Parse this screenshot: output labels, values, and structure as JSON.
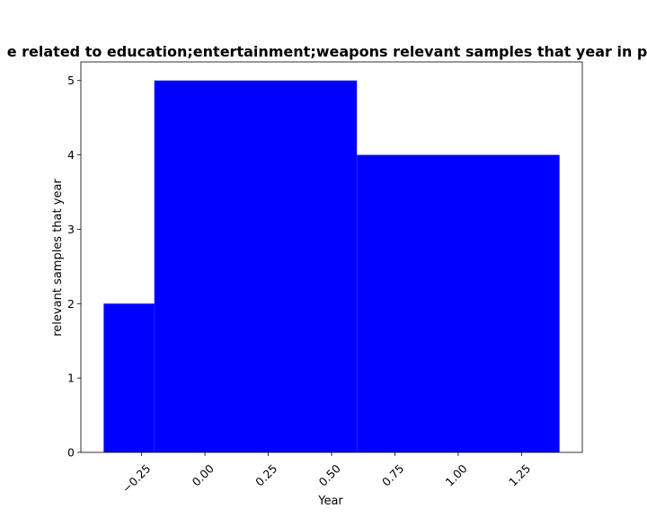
{
  "chart_data": {
    "type": "bar",
    "title": "e related to education;entertainment;weapons relevant samples that year in pr",
    "xlabel": "Year",
    "ylabel": "relevant samples that year",
    "bar_color": "#0000ff",
    "bars": [
      {
        "x_start": -0.4,
        "x_end": -0.2,
        "value": 2
      },
      {
        "x_start": -0.2,
        "x_end": 0.6,
        "value": 5
      },
      {
        "x_start": 0.6,
        "x_end": 1.4,
        "value": 4
      }
    ],
    "xlim": [
      -0.49,
      1.49
    ],
    "ylim": [
      0,
      5.25
    ],
    "x_ticks": [
      {
        "value": -0.25,
        "label": "−0.25"
      },
      {
        "value": 0.0,
        "label": "0.00"
      },
      {
        "value": 0.25,
        "label": "0.25"
      },
      {
        "value": 0.5,
        "label": "0.50"
      },
      {
        "value": 0.75,
        "label": "0.75"
      },
      {
        "value": 1.0,
        "label": "1.00"
      },
      {
        "value": 1.25,
        "label": "1.25"
      }
    ],
    "y_ticks": [
      {
        "value": 0,
        "label": "0"
      },
      {
        "value": 1,
        "label": "1"
      },
      {
        "value": 2,
        "label": "2"
      },
      {
        "value": 3,
        "label": "3"
      },
      {
        "value": 4,
        "label": "4"
      },
      {
        "value": 5,
        "label": "5"
      }
    ],
    "grid": false,
    "legend": "none"
  }
}
